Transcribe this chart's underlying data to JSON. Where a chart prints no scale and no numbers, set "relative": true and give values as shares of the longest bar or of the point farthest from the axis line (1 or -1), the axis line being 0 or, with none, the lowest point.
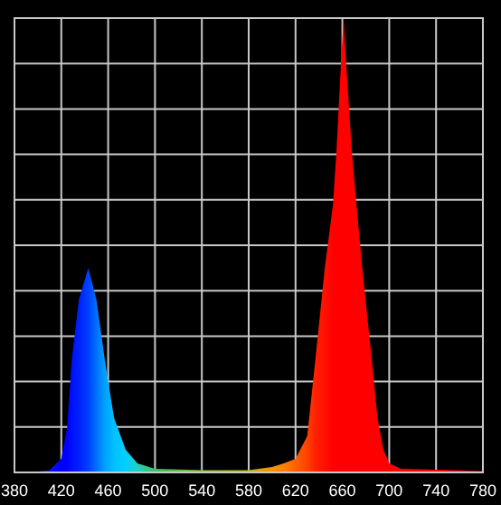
{
  "chart_data": {
    "type": "area",
    "relative": true,
    "grid": true,
    "xlim": [
      380,
      780
    ],
    "xticks": [
      380,
      420,
      460,
      500,
      540,
      580,
      620,
      660,
      700,
      740,
      780
    ],
    "x": [
      380,
      400,
      410,
      420,
      425,
      429,
      435,
      443,
      450,
      457,
      465,
      475,
      485,
      500,
      540,
      580,
      600,
      610,
      620,
      630,
      637,
      645,
      652,
      655,
      659,
      661,
      663,
      668,
      672,
      677,
      685,
      690,
      695,
      700,
      710,
      780
    ],
    "series": [
      {
        "values": [
          0,
          0.002,
          0.005,
          0.03,
          0.1,
          0.25,
          0.38,
          0.45,
          0.38,
          0.25,
          0.12,
          0.05,
          0.02,
          0.008,
          0.005,
          0.005,
          0.012,
          0.02,
          0.03,
          0.08,
          0.25,
          0.45,
          0.59,
          0.71,
          0.91,
          1,
          0.91,
          0.71,
          0.59,
          0.45,
          0.25,
          0.12,
          0.05,
          0.02,
          0.008,
          0.003
        ],
        "colors": [
          "#2020ff",
          "#2020ff",
          "#1010ff",
          "#0000ff",
          "#0000ff",
          "#0010ff",
          "#0020ff",
          "#0040ff",
          "#0070ff",
          "#00a0ff",
          "#00c0ff",
          "#00d0ff",
          "#20d0c0",
          "#40c060",
          "#80c040",
          "#c0b020",
          "#ff9000",
          "#ff8000",
          "#ff6000",
          "#ff4000",
          "#ff2000",
          "#ff1000",
          "#ff0000",
          "#ff0000",
          "#ff0000",
          "#ff0000",
          "#ff0000",
          "#ff0000",
          "#ff0000",
          "#ff0000",
          "#ff0000",
          "#ff0000",
          "#ff0000",
          "#ff0000",
          "#ff0000",
          "#ff0000"
        ]
      }
    ]
  }
}
